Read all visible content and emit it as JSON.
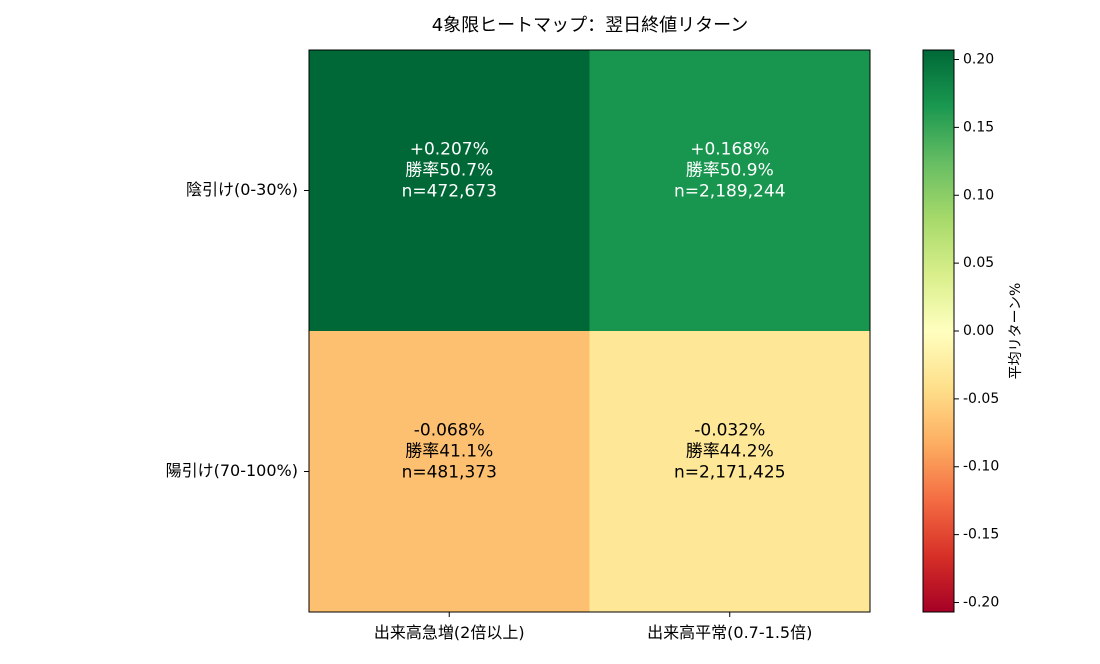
{
  "chart_data": {
    "type": "heatmap",
    "title": "4象限ヒートマップ：翌日終値リターン",
    "x_categories": [
      "出来高急増(2倍以上)",
      "出来高平常(0.7-1.5倍)"
    ],
    "y_categories": [
      "陰引け(0-30%)",
      "陽引け(70-100%)"
    ],
    "cells": [
      [
        {
          "value": 0.207,
          "label_return": "+0.207%",
          "label_winrate": "勝率50.7%",
          "label_n": "n=472,673"
        },
        {
          "value": 0.168,
          "label_return": "+0.168%",
          "label_winrate": "勝率50.9%",
          "label_n": "n=2,189,244"
        }
      ],
      [
        {
          "value": -0.068,
          "label_return": "-0.068%",
          "label_winrate": "勝率41.1%",
          "label_n": "n=481,373"
        },
        {
          "value": -0.032,
          "label_return": "-0.032%",
          "label_winrate": "勝率44.2%",
          "label_n": "n=2,171,425"
        }
      ]
    ],
    "colorbar": {
      "label": "平均リターン%",
      "range": [
        -0.207,
        0.207
      ],
      "ticks": [
        0.2,
        0.15,
        0.1,
        0.05,
        0.0,
        -0.05,
        -0.1,
        -0.15,
        -0.2
      ],
      "tick_labels": [
        "0.20",
        "0.15",
        "0.10",
        "0.05",
        "0.00",
        "-0.05",
        "-0.10",
        "-0.15",
        "-0.20"
      ],
      "colormap": "RdYlGn",
      "colormap_stops": [
        "#a50026",
        "#d73027",
        "#f46d43",
        "#fdae61",
        "#fee08b",
        "#ffffbf",
        "#d9ef8b",
        "#a6d96a",
        "#66bd63",
        "#1a9850",
        "#006837"
      ]
    }
  }
}
